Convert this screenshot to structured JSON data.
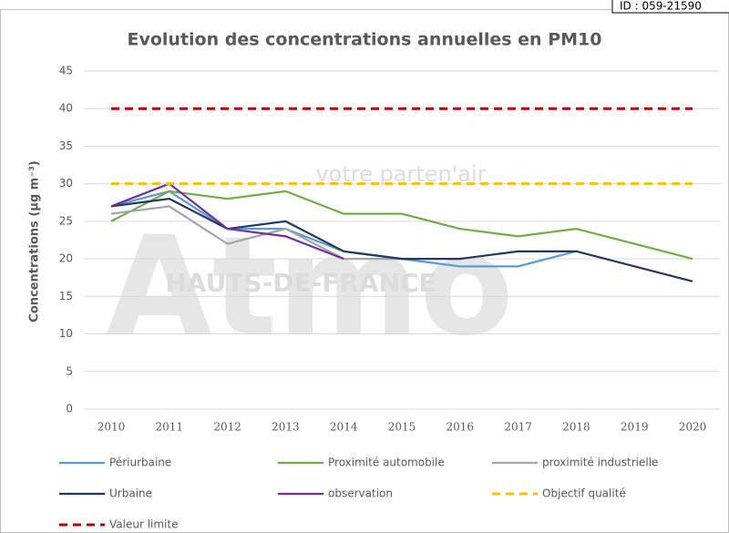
{
  "id_label": "ID : 059-21590",
  "watermark": {
    "brand": "Atmo",
    "region": "HAUTS-DE-FRANCE",
    "tagline": "votre parten'air"
  },
  "chart_data": {
    "type": "line",
    "title": "Evolution des concentrations annuelles en PM10",
    "y_label": "Concentrations (µg m⁻³)",
    "categories": [
      "2010",
      "2011",
      "2012",
      "2013",
      "2014",
      "2015",
      "2016",
      "2017",
      "2018",
      "2019",
      "2020"
    ],
    "ylim": [
      0,
      45
    ],
    "yticks": [
      0,
      5,
      10,
      15,
      20,
      25,
      30,
      35,
      40,
      45
    ],
    "grid": true,
    "legend": "bottom",
    "series": [
      {
        "name": "Périurbaine",
        "color": "#5b9bd5",
        "dashed": false,
        "values": [
          27,
          29,
          24,
          24,
          21,
          20,
          19,
          19,
          21,
          null,
          null
        ]
      },
      {
        "name": "Proximité automobile",
        "color": "#70ad47",
        "dashed": false,
        "values": [
          25,
          29,
          28,
          29,
          26,
          26,
          24,
          23,
          24,
          22,
          20
        ]
      },
      {
        "name": "proximité industrielle",
        "color": "#a5a5a5",
        "dashed": false,
        "values": [
          26,
          27,
          22,
          24,
          20,
          20,
          null,
          null,
          null,
          null,
          null
        ]
      },
      {
        "name": "Urbaine",
        "color": "#1f3864",
        "dashed": false,
        "values": [
          27,
          28,
          24,
          25,
          21,
          20,
          20,
          21,
          21,
          19,
          17
        ]
      },
      {
        "name": "observation",
        "color": "#7030a0",
        "dashed": false,
        "values": [
          27,
          30,
          24,
          23,
          20,
          null,
          null,
          null,
          null,
          null,
          null
        ]
      },
      {
        "name": "Objectif qualité",
        "color": "#ffc000",
        "dashed": true,
        "values": [
          30,
          30,
          30,
          30,
          30,
          30,
          30,
          30,
          30,
          30,
          30
        ]
      },
      {
        "name": "Valeur limite",
        "color": "#c00000",
        "dashed": true,
        "values": [
          40,
          40,
          40,
          40,
          40,
          40,
          40,
          40,
          40,
          40,
          40
        ]
      }
    ]
  }
}
